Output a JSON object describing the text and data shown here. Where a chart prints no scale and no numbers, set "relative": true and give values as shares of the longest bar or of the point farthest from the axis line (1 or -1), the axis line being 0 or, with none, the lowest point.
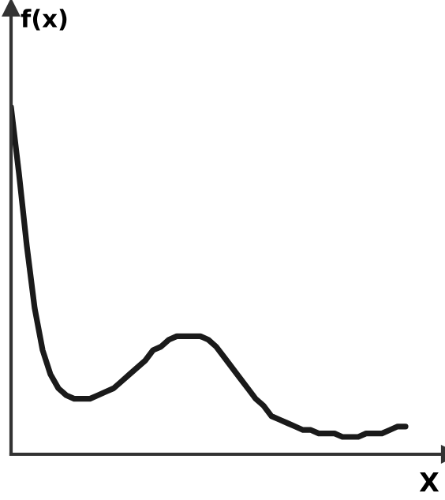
{
  "chart_data": {
    "type": "line",
    "relative": true,
    "xlabel": "X",
    "ylabel": "f(x)",
    "legend": false,
    "marker": "none",
    "line_style": "solid",
    "categories": [
      null,
      null,
      null,
      null,
      null,
      null,
      null,
      null,
      null,
      null,
      null,
      null,
      null,
      null,
      null,
      null,
      null,
      null,
      null,
      null,
      null,
      null,
      null,
      null,
      null,
      null,
      null,
      null,
      null,
      null,
      null,
      null,
      null,
      null,
      null,
      null,
      null,
      null,
      null,
      null,
      null,
      null,
      null,
      null,
      null,
      null,
      null,
      null,
      null,
      null,
      null
    ],
    "series": [
      {
        "color": "#1a1a1a",
        "values": [
          1.0,
          0.81,
          0.6,
          0.42,
          0.3,
          0.23,
          0.19,
          0.17,
          0.16,
          0.16,
          0.16,
          0.17,
          0.18,
          0.19,
          0.21,
          0.23,
          0.25,
          0.27,
          0.3,
          0.31,
          0.33,
          0.34,
          0.34,
          0.34,
          0.34,
          0.33,
          0.31,
          0.28,
          0.25,
          0.22,
          0.19,
          0.16,
          0.14,
          0.11,
          0.1,
          0.09,
          0.08,
          0.07,
          0.07,
          0.06,
          0.06,
          0.06,
          0.05,
          0.05,
          0.05,
          0.06,
          0.06,
          0.06,
          0.07,
          0.08,
          0.08
        ]
      }
    ]
  }
}
